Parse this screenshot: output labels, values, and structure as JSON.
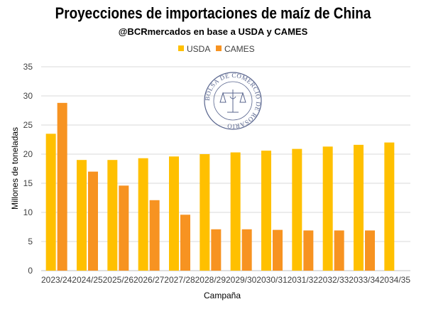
{
  "chart_data": {
    "type": "bar",
    "title": "Proyecciones de importaciones de maíz de China",
    "subtitle": "@BCRmercados en base a USDA y CAMES",
    "xlabel": "Campaña",
    "ylabel": "Millones de toneladas",
    "ylim": [
      0,
      35
    ],
    "yticks": [
      0,
      5,
      10,
      15,
      20,
      25,
      30,
      35
    ],
    "grid": true,
    "legend_position": "top",
    "categories": [
      "2023/24",
      "2024/25",
      "2025/26",
      "2026/27",
      "2027/28",
      "2028/29",
      "2029/30",
      "2030/31",
      "2031/32",
      "2032/33",
      "2033/34",
      "2034/35"
    ],
    "series": [
      {
        "name": "USDA",
        "color": "#FFC000",
        "values": [
          23.5,
          19.0,
          19.0,
          19.3,
          19.6,
          20.0,
          20.3,
          20.6,
          20.9,
          21.3,
          21.6,
          22.0
        ]
      },
      {
        "name": "CAMES",
        "color": "#F79321",
        "values": [
          28.8,
          17.0,
          14.6,
          12.1,
          9.6,
          7.1,
          7.1,
          7.0,
          6.9,
          6.9,
          6.9,
          null
        ]
      }
    ]
  },
  "watermark": {
    "text": "BOLSA DE COMERCIO DE ROSARIO",
    "icon": "scales-of-justice-seal-icon"
  }
}
